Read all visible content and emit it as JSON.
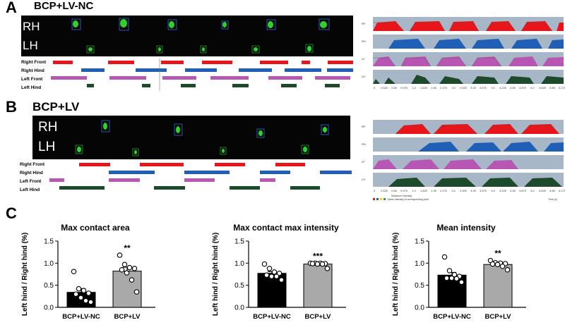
{
  "panels": {
    "A": {
      "letter": "A",
      "title": "BCP+LV-NC",
      "paw_labels": [
        "RH",
        "LH"
      ]
    },
    "B": {
      "letter": "B",
      "title": "BCP+LV",
      "paw_labels": [
        "RH",
        "LH"
      ]
    },
    "C": {
      "letter": "C"
    }
  },
  "gait_rows": [
    "Right Front",
    "Right Hind",
    "Left Front",
    "Left Hind"
  ],
  "gait_colors": {
    "Right Front": "#e8151b",
    "Right Hind": "#1f5fb5",
    "Left Front": "#b857b3",
    "Left Hind": "#1e4a2c"
  },
  "intensity_plot": {
    "row_labels": [
      "RF",
      "RH",
      "LF",
      "LH"
    ],
    "x_ticks": [
      "0",
      "0.325",
      "0.65",
      "0.975",
      "1.3",
      "1.625",
      "1.95",
      "2.275",
      "2.6",
      "2.925",
      "3.25",
      "3.575",
      "3.9",
      "4.225",
      "4.55",
      "4.875",
      "5.2",
      "5.525",
      "5.85",
      "6.175"
    ],
    "legend_max": "Maximum Intensity",
    "legend_mean": "Mean Intensity of corresponding print",
    "x_unit": "Time (s)"
  },
  "chart_data": [
    {
      "type": "bar",
      "title": "Max contact area",
      "ylabel": "Left hind / Right hind (%)",
      "categories": [
        "BCP+LV-NC",
        "BCP+LV"
      ],
      "values": [
        0.34,
        0.82
      ],
      "sem": [
        0.08,
        0.09
      ],
      "points": [
        [
          0.81,
          0.42,
          0.38,
          0.32,
          0.3,
          0.22,
          0.15,
          0.12
        ],
        [
          1.18,
          0.97,
          0.9,
          0.88,
          0.85,
          0.78,
          0.62,
          0.35
        ]
      ],
      "significance": [
        "",
        "**"
      ],
      "bar_colors": [
        "#000000",
        "#a9a9a9"
      ],
      "ylim": [
        0,
        1.5
      ],
      "yticks": [
        "0.0",
        "0.5",
        "1.0",
        "1.5"
      ]
    },
    {
      "type": "bar",
      "title": "Max contact max intensity",
      "ylabel": "Left hind / Right hind (%)",
      "categories": [
        "BCP+LV-NC",
        "BCP+LV"
      ],
      "values": [
        0.77,
        0.98
      ],
      "sem": [
        0.04,
        0.02
      ],
      "points": [
        [
          0.98,
          0.88,
          0.8,
          0.77,
          0.73,
          0.7,
          0.7,
          0.62
        ],
        [
          1.0,
          1.0,
          1.0,
          0.99,
          0.99,
          0.98,
          0.98,
          0.88
        ]
      ],
      "significance": [
        "",
        "***"
      ],
      "bar_colors": [
        "#000000",
        "#a9a9a9"
      ],
      "ylim": [
        0,
        1.5
      ],
      "yticks": [
        "0.0",
        "0.5",
        "1.0",
        "1.5"
      ]
    },
    {
      "type": "bar",
      "title": "Mean intensity",
      "ylabel": "Left hind / Right hind (%)",
      "categories": [
        "BCP+LV-NC",
        "BCP+LV"
      ],
      "values": [
        0.73,
        0.97
      ],
      "sem": [
        0.06,
        0.03
      ],
      "points": [
        [
          1.14,
          0.83,
          0.74,
          0.7,
          0.66,
          0.66,
          0.65,
          0.57
        ],
        [
          1.06,
          1.01,
          1.0,
          0.99,
          0.98,
          0.97,
          0.93,
          0.85
        ]
      ],
      "significance": [
        "",
        "**"
      ],
      "bar_colors": [
        "#000000",
        "#a9a9a9"
      ],
      "ylim": [
        0,
        1.5
      ],
      "yticks": [
        "0.0",
        "0.5",
        "1.0",
        "1.5"
      ]
    }
  ]
}
